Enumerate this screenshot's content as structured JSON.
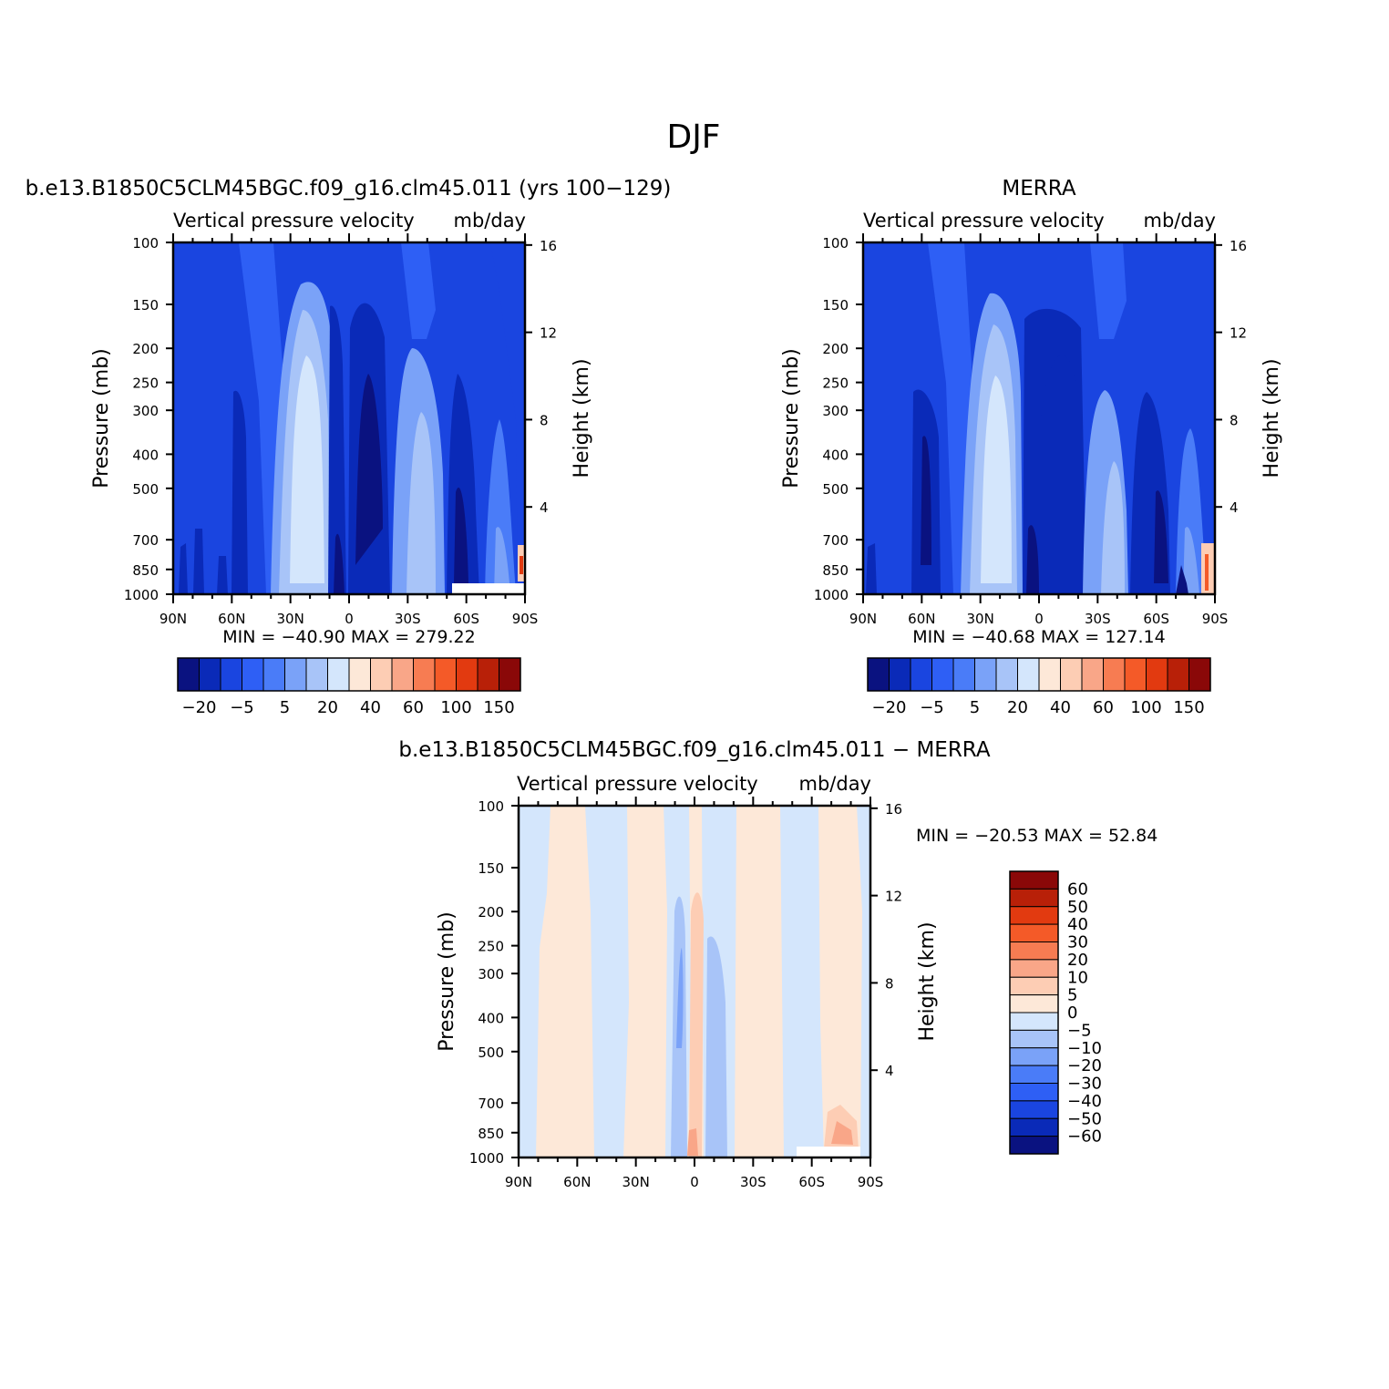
{
  "figure": {
    "main_title": "DJF"
  },
  "chart_data": [
    {
      "type": "heatmap",
      "title": "b.e13.B1850C5CLM45BGC.f09_g16.clm45.011 (yrs 100−129)",
      "subtitle_left": "Vertical pressure velocity",
      "subtitle_right": "mb/day",
      "xlabel": "",
      "ylabel": "Pressure (mb)",
      "ylabel_right": "Height (km)",
      "x_ticks": [
        "90N",
        "60N",
        "30N",
        "0",
        "30S",
        "60S",
        "90S"
      ],
      "y_ticks": [
        100,
        150,
        200,
        250,
        300,
        400,
        500,
        700,
        850,
        1000
      ],
      "y_ticks_right": [
        16,
        12,
        8,
        4
      ],
      "y_scale": "log",
      "ylim": [
        100,
        1000
      ],
      "stats": "MIN = −40.90   MAX = 279.22",
      "colorbar_labels": [
        "−20",
        "−5",
        "5",
        "20",
        "40",
        "60",
        "100",
        "150"
      ],
      "colorbar_colors": [
        "#0a1280",
        "#0a2ab8",
        "#1a45e0",
        "#2e5ff5",
        "#4a7cf8",
        "#7aa2f8",
        "#a8c4f8",
        "#d4e6fc",
        "#fde8d8",
        "#fdcdb4",
        "#f9a688",
        "#f77c52",
        "#f45a28",
        "#e23a10",
        "#b82008",
        "#8a0808"
      ]
    },
    {
      "type": "heatmap",
      "title": "MERRA",
      "subtitle_left": "Vertical pressure velocity",
      "subtitle_right": "mb/day",
      "xlabel": "",
      "ylabel": "Pressure (mb)",
      "ylabel_right": "Height (km)",
      "x_ticks": [
        "90N",
        "60N",
        "30N",
        "0",
        "30S",
        "60S",
        "90S"
      ],
      "y_ticks": [
        100,
        150,
        200,
        250,
        300,
        400,
        500,
        700,
        850,
        1000
      ],
      "y_ticks_right": [
        16,
        12,
        8,
        4
      ],
      "y_scale": "log",
      "ylim": [
        100,
        1000
      ],
      "stats": "MIN = −40.68   MAX = 127.14",
      "colorbar_labels": [
        "−20",
        "−5",
        "5",
        "20",
        "40",
        "60",
        "100",
        "150"
      ],
      "colorbar_colors": [
        "#0a1280",
        "#0a2ab8",
        "#1a45e0",
        "#2e5ff5",
        "#4a7cf8",
        "#7aa2f8",
        "#a8c4f8",
        "#d4e6fc",
        "#fde8d8",
        "#fdcdb4",
        "#f9a688",
        "#f77c52",
        "#f45a28",
        "#e23a10",
        "#b82008",
        "#8a0808"
      ]
    },
    {
      "type": "heatmap",
      "title": "b.e13.B1850C5CLM45BGC.f09_g16.clm45.011 − MERRA",
      "subtitle_left": "Vertical pressure velocity",
      "subtitle_right": "mb/day",
      "xlabel": "",
      "ylabel": "Pressure (mb)",
      "ylabel_right": "Height (km)",
      "x_ticks": [
        "90N",
        "60N",
        "30N",
        "0",
        "30S",
        "60S",
        "90S"
      ],
      "y_ticks": [
        100,
        150,
        200,
        250,
        300,
        400,
        500,
        700,
        850,
        1000
      ],
      "y_ticks_right": [
        16,
        12,
        8,
        4
      ],
      "y_scale": "log",
      "ylim": [
        100,
        1000
      ],
      "stats": "MIN = −20.53   MAX =   52.84",
      "colorbar_labels": [
        "60",
        "50",
        "40",
        "30",
        "20",
        "10",
        "5",
        "0",
        "−5",
        "−10",
        "−20",
        "−30",
        "−40",
        "−50",
        "−60"
      ],
      "colorbar_colors": [
        "#8a0808",
        "#b82008",
        "#e23a10",
        "#f45a28",
        "#f77c52",
        "#f9a688",
        "#fdcdb4",
        "#fde8d8",
        "#d4e6fc",
        "#a8c4f8",
        "#7aa2f8",
        "#4a7cf8",
        "#2e5ff5",
        "#1a45e0",
        "#0a2ab8",
        "#0a1280"
      ]
    }
  ]
}
